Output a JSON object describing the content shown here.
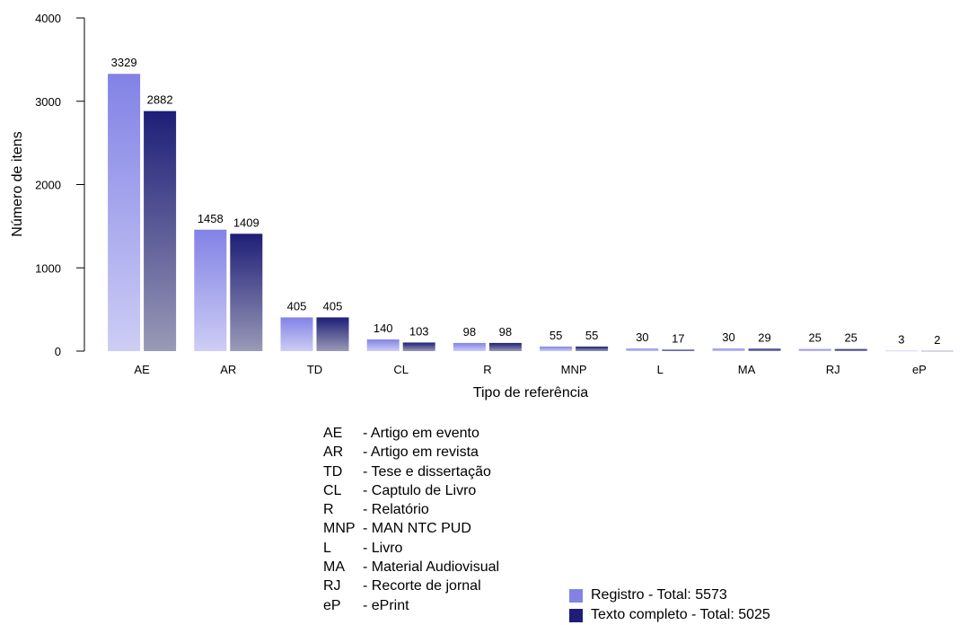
{
  "chart_data": {
    "type": "bar",
    "xlabel": "Tipo de referência",
    "ylabel": "Número de itens",
    "ylim": [
      0,
      4000
    ],
    "yticks": [
      0,
      1000,
      2000,
      3000,
      4000
    ],
    "categories": [
      "AE",
      "AR",
      "TD",
      "CL",
      "R",
      "MNP",
      "L",
      "MA",
      "RJ",
      "eP"
    ],
    "series": [
      {
        "name": "Registro - Total: 5573",
        "color": "#8282e6",
        "values": [
          3329,
          1458,
          405,
          140,
          98,
          55,
          30,
          30,
          25,
          3
        ]
      },
      {
        "name": "Texto completo - Total: 5025",
        "color": "#1e1e78",
        "values": [
          2882,
          1409,
          405,
          103,
          98,
          55,
          17,
          29,
          25,
          2
        ]
      }
    ],
    "legend_position": "bottom-right",
    "grid": false
  },
  "abbreviations": [
    {
      "code": "AE",
      "desc": "- Artigo em evento"
    },
    {
      "code": "AR",
      "desc": "- Artigo em revista"
    },
    {
      "code": "TD",
      "desc": "- Tese e dissertação"
    },
    {
      "code": "CL",
      "desc": "- Captulo de Livro"
    },
    {
      "code": "R",
      "desc": "- Relatório"
    },
    {
      "code": "MNP",
      "desc": "- MAN NTC PUD"
    },
    {
      "code": "L",
      "desc": "- Livro"
    },
    {
      "code": "MA",
      "desc": "- Material Audiovisual"
    },
    {
      "code": "RJ",
      "desc": "- Recorte de jornal"
    },
    {
      "code": "eP",
      "desc": "- ePrint"
    }
  ]
}
